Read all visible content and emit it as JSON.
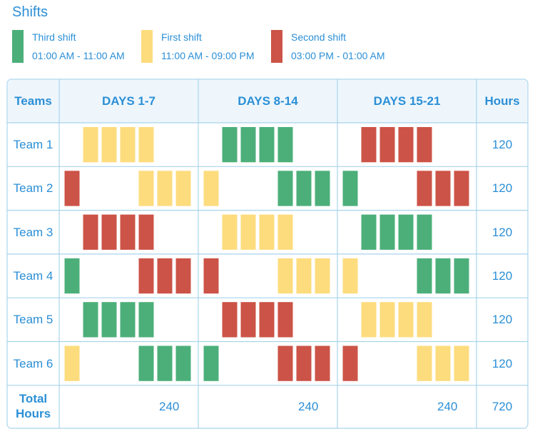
{
  "title": "Shifts",
  "legend": [
    {
      "name": "Third shift",
      "time": "01:00 AM - 11:00 AM",
      "color": "#4caf7a",
      "key": "third"
    },
    {
      "name": "First shift",
      "time": "11:00 AM - 09:00 PM",
      "color": "#fddc7e",
      "key": "first"
    },
    {
      "name": "Second shift",
      "time": "03:00 PM - 01:00 AM",
      "color": "#cc5347",
      "key": "second"
    }
  ],
  "table": {
    "headers": [
      "Teams",
      "DAYS 1-7",
      "DAYS 8-14",
      "DAYS 15-21",
      "Hours"
    ],
    "rows": [
      {
        "team": "Team 1",
        "hours": "120"
      },
      {
        "team": "Team 2",
        "hours": "120"
      },
      {
        "team": "Team 3",
        "hours": "120"
      },
      {
        "team": "Team 4",
        "hours": "120"
      },
      {
        "team": "Team 5",
        "hours": "120"
      },
      {
        "team": "Team 6",
        "hours": "120"
      }
    ],
    "total": {
      "label_line1": "Total",
      "label_line2": "Hours",
      "period_totals": [
        "240",
        "240",
        "240"
      ],
      "grand_total": "720"
    }
  },
  "chart_data": {
    "type": "table",
    "days_per_period": 7,
    "schedule": [
      [
        "",
        "first",
        "first",
        "first",
        "first",
        "",
        "",
        "",
        "third",
        "third",
        "third",
        "third",
        "",
        "",
        "",
        "second",
        "second",
        "second",
        "second",
        "",
        ""
      ],
      [
        "second",
        "",
        "",
        "",
        "first",
        "first",
        "first",
        "first",
        "",
        "",
        "",
        "third",
        "third",
        "third",
        "third",
        "",
        "",
        "",
        "second",
        "second",
        "second"
      ],
      [
        "",
        "second",
        "second",
        "second",
        "second",
        "",
        "",
        "",
        "first",
        "first",
        "first",
        "first",
        "",
        "",
        "",
        "third",
        "third",
        "third",
        "third",
        "",
        ""
      ],
      [
        "third",
        "",
        "",
        "",
        "second",
        "second",
        "second",
        "second",
        "",
        "",
        "",
        "first",
        "first",
        "first",
        "first",
        "",
        "",
        "",
        "third",
        "third",
        "third"
      ],
      [
        "",
        "third",
        "third",
        "third",
        "third",
        "",
        "",
        "",
        "second",
        "second",
        "second",
        "second",
        "",
        "",
        "",
        "first",
        "first",
        "first",
        "first",
        "",
        ""
      ],
      [
        "first",
        "",
        "",
        "",
        "third",
        "third",
        "third",
        "third",
        "",
        "",
        "",
        "second",
        "second",
        "second",
        "second",
        "",
        "",
        "",
        "first",
        "first",
        "first"
      ]
    ]
  }
}
